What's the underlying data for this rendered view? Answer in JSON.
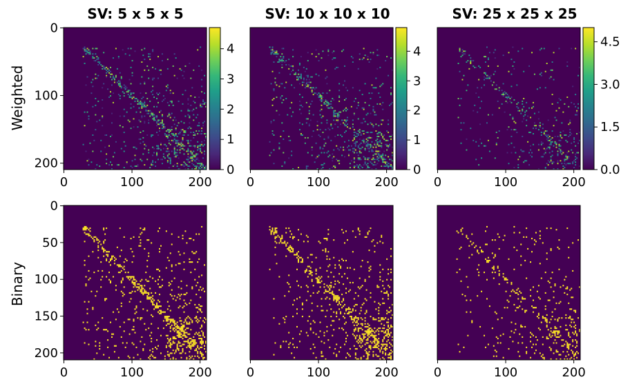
{
  "figure": {
    "columns": [
      "SV: 5 x 5 x 5",
      "SV: 10 x 10 x 10",
      "SV: 25 x 25 x 25"
    ],
    "rows": [
      "Weighted",
      "Binary"
    ]
  },
  "chart_data": [
    {
      "type": "heatmap",
      "title": "SV: 5 x 5 x 5",
      "ylabel": "Weighted",
      "matrix_size": 210,
      "xticks": [
        0,
        100,
        200
      ],
      "yticks": [
        0,
        100,
        200
      ],
      "colorbar": {
        "range": [
          0,
          4.7
        ],
        "ticks": [
          "0",
          "1",
          "2",
          "3",
          "4"
        ],
        "tick_values": [
          0,
          1,
          2,
          3,
          4
        ],
        "colormap": "viridis"
      }
    },
    {
      "type": "heatmap",
      "title": "SV: 10 x 10 x 10",
      "matrix_size": 210,
      "xticks": [
        0,
        100,
        200
      ],
      "colorbar": {
        "range": [
          0,
          4.8
        ],
        "ticks": [
          "0",
          "1",
          "2",
          "3",
          "4"
        ],
        "tick_values": [
          0,
          1,
          2,
          3,
          4
        ],
        "colormap": "viridis"
      }
    },
    {
      "type": "heatmap",
      "title": "SV: 25 x 25 x 25",
      "matrix_size": 210,
      "xticks": [
        0,
        100,
        200
      ],
      "colorbar": {
        "range": [
          0,
          5.0
        ],
        "ticks": [
          "0.0",
          "1.5",
          "3.0",
          "4.5"
        ],
        "tick_values": [
          0,
          1.5,
          3.0,
          4.5
        ],
        "colormap": "viridis"
      }
    },
    {
      "type": "heatmap",
      "ylabel": "Binary",
      "matrix_size": 210,
      "xticks": [
        0,
        100,
        200
      ],
      "yticks": [
        0,
        50,
        100,
        150,
        200
      ],
      "colormap": "binary-viridis"
    },
    {
      "type": "heatmap",
      "matrix_size": 210,
      "xticks": [
        0,
        100,
        200
      ],
      "colormap": "binary-viridis"
    },
    {
      "type": "heatmap",
      "matrix_size": 210,
      "xticks": [
        0,
        100,
        200
      ],
      "colormap": "binary-viridis"
    }
  ],
  "colors": {
    "background": "#440154",
    "binary_on": "#fde725",
    "viridis": [
      "#440154",
      "#482878",
      "#3e4989",
      "#31688e",
      "#26828e",
      "#1f9e89",
      "#35b779",
      "#6ece58",
      "#b5de2b",
      "#fde725"
    ]
  }
}
